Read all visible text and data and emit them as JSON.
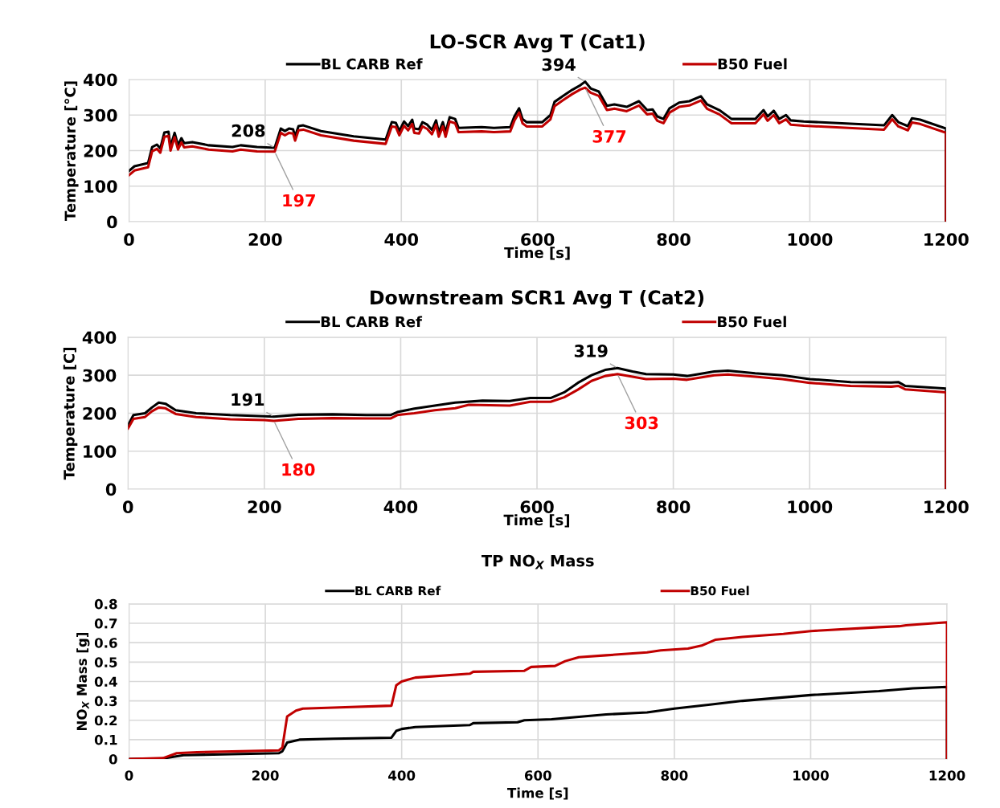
{
  "chart_data": [
    {
      "type": "line",
      "title": "LO-SCR Avg T (Cat1)",
      "xlabel": "Time [s]",
      "ylabel": "Temperature [°C]",
      "xlim": [
        0,
        1200
      ],
      "xticks": [
        0,
        200,
        400,
        600,
        800,
        1000,
        1200
      ],
      "ylim": [
        0,
        400
      ],
      "yticks": [
        0,
        100,
        200,
        300,
        400
      ],
      "grid": true,
      "legend": "top",
      "series": [
        {
          "name": "BL CARB Ref",
          "color": "#000000",
          "x": [
            0,
            8,
            28,
            34,
            41,
            46,
            52,
            58,
            61,
            67,
            72,
            77,
            81,
            93,
            117,
            152,
            164,
            188,
            214,
            223,
            229,
            235,
            241,
            244,
            249,
            256,
            282,
            330,
            377,
            386,
            392,
            397,
            404,
            410,
            416,
            419,
            426,
            431,
            438,
            445,
            451,
            455,
            461,
            465,
            471,
            479,
            484,
            518,
            536,
            560,
            566,
            573,
            578,
            584,
            607,
            619,
            625,
            637,
            651,
            663,
            670,
            678,
            690,
            702,
            713,
            731,
            749,
            761,
            769,
            776,
            785,
            794,
            808,
            823,
            840,
            849,
            867,
            885,
            920,
            932,
            938,
            947,
            955,
            965,
            972,
            991,
            1109,
            1121,
            1130,
            1144,
            1150,
            1162,
            1200,
            1200
          ],
          "values": [
            143,
            156,
            165,
            210,
            217,
            206,
            251,
            253,
            212,
            250,
            215,
            235,
            221,
            224,
            215,
            210,
            215,
            210,
            208,
            262,
            255,
            262,
            260,
            240,
            269,
            271,
            255,
            240,
            231,
            280,
            278,
            255,
            282,
            269,
            287,
            262,
            260,
            280,
            273,
            258,
            285,
            251,
            280,
            251,
            294,
            289,
            264,
            266,
            264,
            266,
            296,
            319,
            289,
            280,
            280,
            300,
            337,
            353,
            371,
            384,
            394,
            375,
            366,
            326,
            330,
            323,
            339,
            314,
            316,
            296,
            289,
            319,
            335,
            339,
            353,
            330,
            314,
            289,
            289,
            314,
            296,
            312,
            289,
            300,
            285,
            282,
            271,
            300,
            280,
            269,
            291,
            287,
            262,
            0
          ]
        },
        {
          "name": "B50 Fuel",
          "color": "#c00000",
          "x": [
            0,
            8,
            28,
            34,
            41,
            46,
            52,
            58,
            61,
            67,
            72,
            77,
            81,
            93,
            117,
            152,
            164,
            188,
            214,
            223,
            229,
            235,
            241,
            244,
            249,
            256,
            282,
            330,
            377,
            386,
            392,
            397,
            404,
            410,
            416,
            419,
            426,
            431,
            438,
            445,
            451,
            455,
            461,
            465,
            471,
            479,
            484,
            518,
            536,
            560,
            566,
            573,
            578,
            584,
            607,
            619,
            625,
            637,
            651,
            663,
            670,
            678,
            690,
            702,
            713,
            731,
            749,
            761,
            769,
            776,
            785,
            794,
            808,
            823,
            840,
            849,
            867,
            885,
            920,
            932,
            938,
            947,
            955,
            965,
            972,
            991,
            1109,
            1121,
            1130,
            1144,
            1150,
            1162,
            1200,
            1200
          ],
          "values": [
            131,
            144,
            153,
            198,
            205,
            194,
            239,
            241,
            200,
            238,
            203,
            223,
            209,
            212,
            203,
            198,
            203,
            198,
            197,
            250,
            243,
            250,
            248,
            228,
            257,
            259,
            243,
            228,
            219,
            268,
            266,
            243,
            270,
            257,
            275,
            250,
            248,
            268,
            261,
            246,
            273,
            239,
            268,
            239,
            282,
            277,
            252,
            254,
            252,
            254,
            284,
            307,
            277,
            268,
            268,
            288,
            325,
            341,
            359,
            372,
            377,
            363,
            354,
            314,
            318,
            311,
            327,
            302,
            304,
            284,
            277,
            307,
            323,
            327,
            341,
            318,
            302,
            277,
            277,
            302,
            284,
            300,
            277,
            288,
            273,
            270,
            259,
            288,
            268,
            257,
            279,
            275,
            250,
            0
          ]
        }
      ],
      "annotations": [
        {
          "text": "208",
          "x": 214,
          "y": 208
        },
        {
          "text": "197",
          "x": 214,
          "y": 197
        },
        {
          "text": "394",
          "x": 670,
          "y": 394
        },
        {
          "text": "377",
          "x": 670,
          "y": 377
        }
      ]
    },
    {
      "type": "line",
      "title": "Downstream SCR1 Avg T (Cat2)",
      "xlabel": "Time [s]",
      "ylabel": "Temperature [C]",
      "xlim": [
        0,
        1200
      ],
      "xticks": [
        0,
        200,
        400,
        600,
        800,
        1000,
        1200
      ],
      "ylim": [
        0,
        400
      ],
      "yticks": [
        0,
        100,
        200,
        300,
        400
      ],
      "grid": true,
      "legend": "top",
      "series": [
        {
          "name": "BL CARB Ref",
          "color": "#000000",
          "x": [
            0,
            8,
            25,
            35,
            45,
            55,
            70,
            100,
            150,
            200,
            214,
            250,
            300,
            350,
            385,
            395,
            420,
            450,
            480,
            520,
            560,
            590,
            620,
            640,
            660,
            680,
            700,
            718,
            740,
            760,
            800,
            820,
            860,
            880,
            920,
            960,
            1000,
            1060,
            1120,
            1130,
            1140,
            1200,
            1200
          ],
          "values": [
            168,
            195,
            200,
            215,
            228,
            225,
            208,
            200,
            195,
            192,
            191,
            196,
            197,
            195,
            195,
            203,
            212,
            220,
            228,
            233,
            232,
            240,
            240,
            255,
            280,
            300,
            314,
            319,
            310,
            303,
            302,
            298,
            310,
            312,
            305,
            300,
            290,
            282,
            281,
            282,
            272,
            265,
            0
          ]
        },
        {
          "name": "B50 Fuel",
          "color": "#c00000",
          "x": [
            0,
            8,
            25,
            35,
            45,
            55,
            70,
            100,
            150,
            200,
            214,
            250,
            300,
            350,
            385,
            395,
            420,
            450,
            480,
            500,
            560,
            590,
            620,
            640,
            660,
            680,
            700,
            718,
            740,
            760,
            800,
            820,
            860,
            880,
            920,
            960,
            1000,
            1060,
            1120,
            1130,
            1140,
            1200,
            1200
          ],
          "values": [
            160,
            185,
            190,
            205,
            215,
            213,
            198,
            190,
            184,
            182,
            180,
            185,
            187,
            186,
            186,
            195,
            200,
            208,
            213,
            222,
            220,
            230,
            230,
            242,
            262,
            285,
            298,
            303,
            296,
            290,
            291,
            288,
            300,
            302,
            296,
            290,
            280,
            272,
            270,
            272,
            263,
            255,
            0
          ]
        }
      ],
      "annotations": [
        {
          "text": "191",
          "x": 214,
          "y": 191
        },
        {
          "text": "180",
          "x": 214,
          "y": 180
        },
        {
          "text": "319",
          "x": 718,
          "y": 319
        },
        {
          "text": "303",
          "x": 718,
          "y": 303
        }
      ]
    },
    {
      "type": "line",
      "title": "TP NO$_{X}$ Mass",
      "xlabel": "Time [s]",
      "ylabel": "NO$_{X}$ Mass [g]",
      "xlim": [
        0,
        1200
      ],
      "xticks": [
        0,
        200,
        400,
        600,
        800,
        1000,
        1200
      ],
      "ylim": [
        0,
        0.8
      ],
      "yticks": [
        0,
        0.1,
        0.2,
        0.3,
        0.4,
        0.5,
        0.6,
        0.7,
        0.8
      ],
      "grid": true,
      "legend": "top",
      "series": [
        {
          "name": "BL CARB Ref",
          "color": "#000000",
          "x": [
            0,
            50,
            80,
            150,
            220,
            225,
            232,
            250,
            300,
            385,
            392,
            400,
            420,
            500,
            505,
            570,
            580,
            620,
            700,
            760,
            800,
            850,
            900,
            1000,
            1100,
            1150,
            1200,
            1200
          ],
          "values": [
            0,
            0.003,
            0.02,
            0.025,
            0.03,
            0.04,
            0.085,
            0.1,
            0.105,
            0.11,
            0.145,
            0.155,
            0.165,
            0.175,
            0.185,
            0.19,
            0.2,
            0.205,
            0.23,
            0.24,
            0.26,
            0.28,
            0.3,
            0.33,
            0.35,
            0.365,
            0.372,
            0
          ]
        },
        {
          "name": "B50 Fuel",
          "color": "#c00000",
          "x": [
            0,
            50,
            70,
            100,
            220,
            225,
            232,
            245,
            255,
            300,
            385,
            392,
            400,
            410,
            420,
            500,
            505,
            580,
            590,
            625,
            640,
            660,
            700,
            760,
            780,
            820,
            840,
            860,
            900,
            960,
            1000,
            1100,
            1130,
            1140,
            1200,
            1200
          ],
          "values": [
            0,
            0.005,
            0.03,
            0.035,
            0.045,
            0.06,
            0.22,
            0.25,
            0.26,
            0.265,
            0.275,
            0.38,
            0.4,
            0.41,
            0.42,
            0.44,
            0.45,
            0.455,
            0.475,
            0.48,
            0.505,
            0.525,
            0.535,
            0.55,
            0.56,
            0.57,
            0.585,
            0.615,
            0.63,
            0.645,
            0.66,
            0.68,
            0.685,
            0.69,
            0.705,
            0
          ]
        }
      ]
    }
  ]
}
